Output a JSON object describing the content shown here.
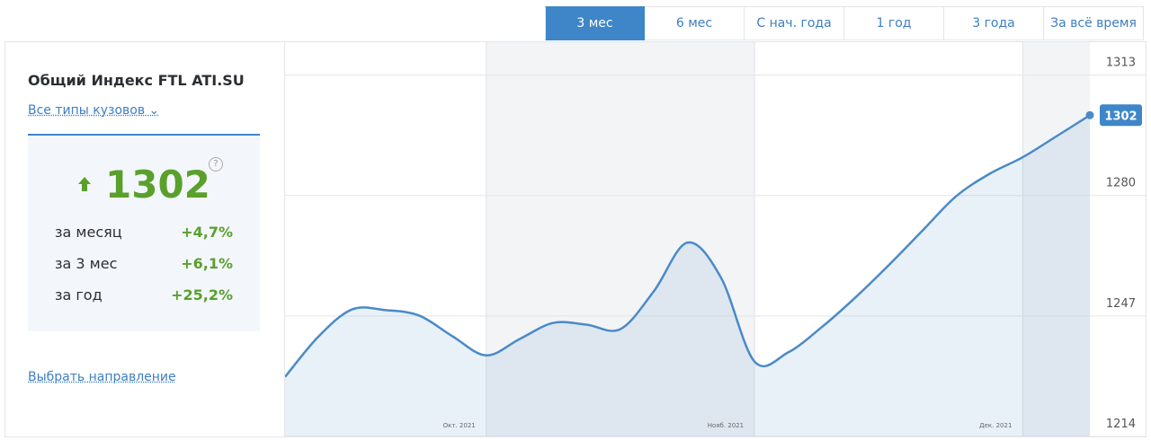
{
  "tabs": [
    {
      "label": "3 мес",
      "active": true
    },
    {
      "label": "6 мес",
      "active": false
    },
    {
      "label": "С нач. года",
      "active": false
    },
    {
      "label": "1 год",
      "active": false
    },
    {
      "label": "3 года",
      "active": false
    },
    {
      "label": "За всё время",
      "active": false
    }
  ],
  "sidebar": {
    "title": "Общий Индекс FTL ATI.SU",
    "body_type_link": "Все типы кузовов",
    "index_value": "1302",
    "stats": [
      {
        "label": "за месяц",
        "value": "+4,7%"
      },
      {
        "label": "за 3 мес",
        "value": "+6,1%"
      },
      {
        "label": "за год",
        "value": "+25,2%"
      }
    ],
    "direction_link": "Выбрать направление"
  },
  "chart_data": {
    "type": "line",
    "categories": [
      null,
      null,
      null,
      null,
      null,
      "Окт. 2021",
      null,
      null,
      null,
      null,
      null,
      null,
      null,
      "Нояб. 2021",
      null,
      null,
      null,
      null,
      null,
      null,
      null,
      "Дек. 2021",
      null,
      null,
      null
    ],
    "values": [
      1230.3,
      1241.4,
      1248.8,
      1248.6,
      1247.1,
      1241.4,
      1236.2,
      1240.7,
      1245.1,
      1244.6,
      1243.4,
      1253.8,
      1267.1,
      1257.5,
      1234.5,
      1237.0,
      1243.9,
      1252.0,
      1260.9,
      1270.3,
      1279.7,
      1285.9,
      1290.5,
      1296.2,
      1302
    ],
    "color": "#4a8ac8",
    "ylim": [
      1214,
      1322
    ],
    "yticks": [
      1214,
      1247,
      1280,
      1313
    ],
    "grid": true
  }
}
